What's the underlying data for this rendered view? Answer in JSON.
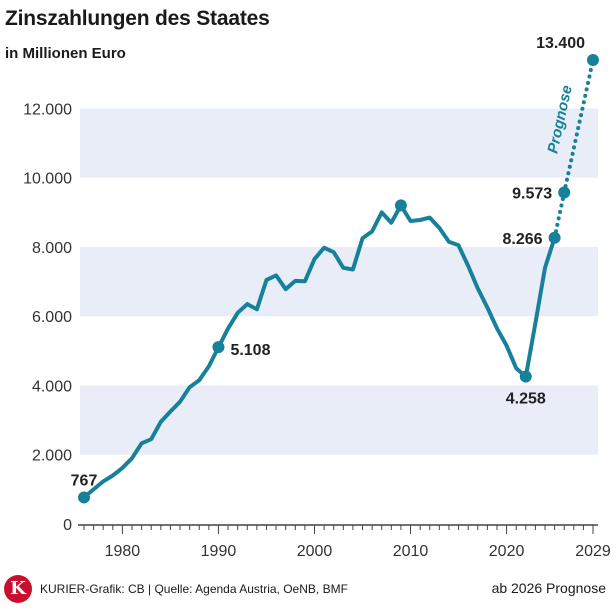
{
  "header": {
    "title": "Zinszahlungen des Staates",
    "subtitle": "in Millionen Euro"
  },
  "footer": {
    "logo_letter": "K",
    "source": "KURIER-Grafik: CB | Quelle: Agenda Austria, OeNB, BMF",
    "note": "ab 2026 Prognose"
  },
  "colors": {
    "line": "#17819a",
    "band": "#e8edf8",
    "logo": "#c8102e"
  },
  "chart_data": {
    "type": "line",
    "title": "Zinszahlungen des Staates",
    "subtitle": "in Millionen Euro",
    "xlim": [
      1976,
      2029
    ],
    "ylim": [
      0,
      13400
    ],
    "x_ticks": [
      {
        "value": 1980,
        "label": "1980"
      },
      {
        "value": 1990,
        "label": "1990"
      },
      {
        "value": 2000,
        "label": "2000"
      },
      {
        "value": 2010,
        "label": "2010"
      },
      {
        "value": 2020,
        "label": "2020"
      },
      {
        "value": 2029,
        "label": "2029"
      }
    ],
    "y_ticks": [
      {
        "value": 0,
        "label": "0"
      },
      {
        "value": 2000,
        "label": "2.000"
      },
      {
        "value": 4000,
        "label": "4.000"
      },
      {
        "value": 6000,
        "label": "6.000"
      },
      {
        "value": 8000,
        "label": "8.000"
      },
      {
        "value": 10000,
        "label": "10.000"
      },
      {
        "value": 12000,
        "label": "12.000"
      }
    ],
    "grid_bands": [
      [
        2000,
        4000
      ],
      [
        6000,
        8000
      ],
      [
        10000,
        12000
      ]
    ],
    "series": [
      {
        "style": "solid",
        "x": [
          1976,
          1977,
          1978,
          1979,
          1980,
          1981,
          1982,
          1983,
          1984,
          1985,
          1986,
          1987,
          1988,
          1989,
          1990,
          1991,
          1992,
          1993,
          1994,
          1995,
          1996,
          1997,
          1998,
          1999,
          2000,
          2001,
          2002,
          2003,
          2004,
          2005,
          2006,
          2007,
          2008,
          2009,
          2010,
          2011,
          2012,
          2013,
          2014,
          2015,
          2016,
          2017,
          2018,
          2019,
          2020,
          2021,
          2022,
          2023,
          2024,
          2025
        ],
        "y": [
          767,
          1000,
          1230,
          1400,
          1620,
          1900,
          2330,
          2450,
          2950,
          3250,
          3530,
          3950,
          4150,
          4550,
          5108,
          5650,
          6100,
          6350,
          6200,
          7050,
          7180,
          6780,
          7020,
          7010,
          7650,
          7980,
          7850,
          7400,
          7350,
          8250,
          8450,
          9000,
          8700,
          9200,
          8750,
          8780,
          8850,
          8550,
          8150,
          8050,
          7450,
          6800,
          6250,
          5650,
          5150,
          4500,
          4258,
          5800,
          7400,
          8266
        ]
      },
      {
        "name": "Prognose",
        "style": "dotted",
        "x": [
          2025,
          2026,
          2029
        ],
        "y": [
          8266,
          9573,
          13400
        ]
      }
    ],
    "annotations": [
      {
        "x": 1976,
        "y": 767,
        "label": "767",
        "anchor": "above"
      },
      {
        "x": 1990,
        "y": 5108,
        "label": "5.108",
        "anchor": "right"
      },
      {
        "x": 2009,
        "y": 9200,
        "label": "",
        "anchor": "none"
      },
      {
        "x": 2022,
        "y": 4258,
        "label": "4.258",
        "anchor": "below"
      },
      {
        "x": 2025,
        "y": 8266,
        "label": "8.266",
        "anchor": "left"
      },
      {
        "x": 2026,
        "y": 9573,
        "label": "9.573",
        "anchor": "left"
      },
      {
        "x": 2029,
        "y": 13400,
        "label": "13.400",
        "anchor": "above-left"
      }
    ],
    "forecast_label": "Prognose",
    "grid": "horizontal bands",
    "legend": "none"
  }
}
